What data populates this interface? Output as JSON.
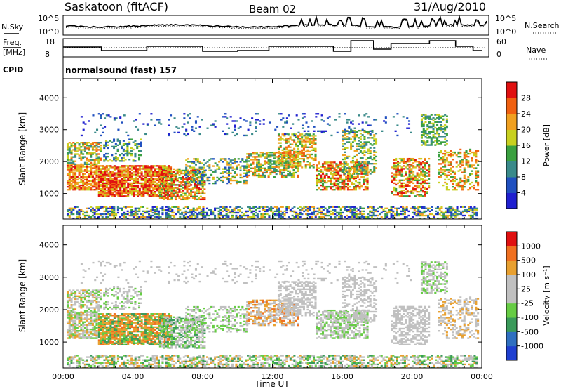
{
  "header": {
    "station": "Saskatoon (fitACF)",
    "beam": "Beam 02",
    "date": "31/Aug/2010"
  },
  "summary_labels": {
    "nsky": "N.Sky",
    "nsearch": "N.Search",
    "freq_line1": "Freq.",
    "freq_line2": "[MHz]",
    "nave": "Nave",
    "cpid": "CPID",
    "cpid_value": "normalsound (fast) 157",
    "noise_ticks": [
      "10^5",
      "10^0"
    ],
    "freq_ticks": [
      "18",
      "8"
    ],
    "nave_ticks": [
      "60",
      "0"
    ]
  },
  "colors": {
    "power_scale": [
      "#2020d0",
      "#2050c0",
      "#3a8a8a",
      "#3aa040",
      "#c8d020",
      "#f0a020",
      "#f06010",
      "#e01010"
    ],
    "velocity_scale": [
      "#1f3fd0",
      "#2f6fc0",
      "#3a9a5a",
      "#66cc44",
      "#c0c0c0",
      "#c0c0c0",
      "#e8a030",
      "#f07020",
      "#e01010"
    ]
  },
  "chart_data": [
    {
      "type": "heatmap",
      "name": "power",
      "ylabel": "Slant Range [km]",
      "yticks": [
        "4000",
        "3000",
        "2000",
        "1000"
      ],
      "ylim": [
        200,
        4600
      ],
      "xlim": [
        0,
        24
      ],
      "colorbar_label": "Power [dB]",
      "colorbar_ticks": [
        "28",
        "24",
        "20",
        "16",
        "12",
        "8",
        "4"
      ],
      "colorbar_range": [
        0,
        32
      ]
    },
    {
      "type": "heatmap",
      "name": "velocity",
      "ylabel": "Slant Range [km]",
      "yticks": [
        "4000",
        "3000",
        "2000",
        "1000"
      ],
      "ylim": [
        200,
        4600
      ],
      "xlim": [
        0,
        24
      ],
      "xlabel": "Time UT",
      "xticks": [
        "00:00",
        "04:00",
        "08:00",
        "12:00",
        "16:00",
        "20:00",
        "00:00"
      ],
      "colorbar_label": "Velocity [m s⁻¹]",
      "colorbar_ticks": [
        "1000",
        "500",
        "100",
        "25",
        "-25",
        "-100",
        "-500",
        "-1000"
      ]
    }
  ]
}
